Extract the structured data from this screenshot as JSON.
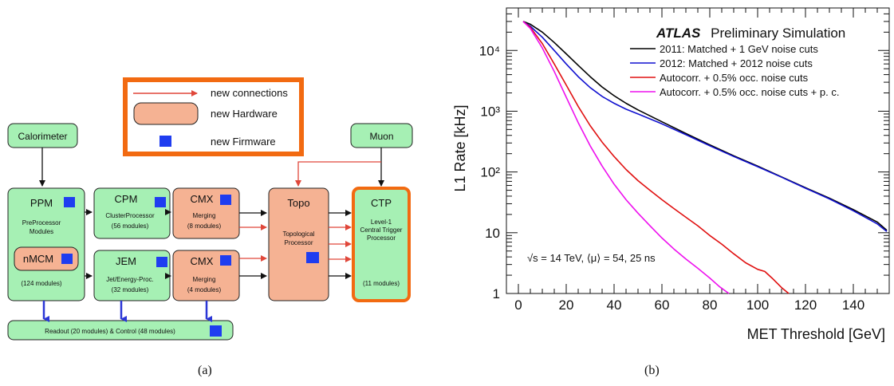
{
  "panel_a": {
    "caption": "(a)",
    "legend": {
      "new_connections": "new connections",
      "new_hardware": "new Hardware",
      "new_firmware": "new Firmware"
    },
    "calorimeter": "Calorimeter",
    "muon": "Muon",
    "ppm": {
      "title": "PPM",
      "sub1": "PreProcessor",
      "sub2": "Modules",
      "nmcm": "nMCM",
      "count": "(124 modules)"
    },
    "cpm": {
      "title": "CPM",
      "sub": "ClusterProcessor",
      "count": "(56 modules)"
    },
    "jem": {
      "title": "JEM",
      "sub": "Jet/Energy-Proc.",
      "count": "(32 modules)"
    },
    "cmx_top": {
      "title": "CMX",
      "sub": "Merging",
      "count": "(8 modules)"
    },
    "cmx_bottom": {
      "title": "CMX",
      "sub": "Merging",
      "count": "(4 modules)"
    },
    "topo": {
      "title": "Topo",
      "sub1": "Topological",
      "sub2": "Processor"
    },
    "ctp": {
      "title": "CTP",
      "sub1": "Level-1",
      "sub2": "Central Trigger",
      "sub3": "Processor",
      "count": "(11 modules)"
    },
    "readout": "Readout (20 modules) & Control  (48 modules)",
    "colors": {
      "green": "#a6f0b4",
      "salmon": "#f5b293",
      "orange": "#f26a11",
      "blue": "#1f3df0",
      "arrow_red": "#e0473a",
      "arrow_blue": "#2b36d6"
    }
  },
  "panel_b": {
    "caption": "(b)",
    "chart_data": {
      "type": "line",
      "xlabel": "MET Threshold [GeV]",
      "ylabel": "L1 Rate [kHz]",
      "xlim": [
        -5,
        155
      ],
      "ylim": [
        1,
        50000
      ],
      "yscale": "log",
      "x_ticks": [
        0,
        20,
        40,
        60,
        80,
        100,
        120,
        140
      ],
      "y_ticks": [
        {
          "value": 1,
          "label": "1"
        },
        {
          "value": 10,
          "label": "10"
        },
        {
          "value": 100,
          "label": "10²"
        },
        {
          "value": 1000,
          "label": "10³"
        },
        {
          "value": 10000,
          "label": "10⁴"
        }
      ],
      "legend_title_bold": "ATLAS",
      "legend_title_rest": "Preliminary Simulation",
      "legend_position": "top-right",
      "annotation": "√s  = 14 TeV, ⟨μ⟩ = 54, 25 ns",
      "series": [
        {
          "name": "2011: Matched + 1 GeV noise cuts",
          "color": "#000000",
          "x": [
            2,
            5,
            10,
            15,
            20,
            25,
            30,
            35,
            40,
            45,
            50,
            60,
            70,
            80,
            90,
            100,
            110,
            120,
            130,
            140,
            150,
            154
          ],
          "y": [
            30000,
            27000,
            20000,
            13500,
            8800,
            5700,
            3700,
            2500,
            1800,
            1350,
            1050,
            670,
            430,
            280,
            185,
            125,
            83,
            55,
            37,
            24,
            15,
            11
          ]
        },
        {
          "name": "2012: Matched + 2012 noise cuts",
          "color": "#1010d0",
          "x": [
            2,
            5,
            10,
            15,
            20,
            25,
            30,
            35,
            40,
            45,
            50,
            60,
            70,
            80,
            90,
            100,
            110,
            120,
            130,
            140,
            150,
            154
          ],
          "y": [
            30000,
            25000,
            16500,
            10000,
            6000,
            3700,
            2450,
            1750,
            1350,
            1080,
            900,
            620,
            410,
            270,
            180,
            122,
            82,
            54,
            36,
            23,
            14,
            10.5
          ]
        },
        {
          "name": "Autocorr. + 0.5% occ. noise cuts",
          "color": "#e01010",
          "x": [
            2,
            5,
            10,
            15,
            20,
            25,
            30,
            35,
            40,
            45,
            50,
            55,
            60,
            65,
            70,
            75,
            80,
            85,
            90,
            95,
            100,
            103,
            106,
            110,
            113
          ],
          "y": [
            30000,
            24000,
            13000,
            6000,
            2700,
            1200,
            580,
            310,
            180,
            110,
            72,
            50,
            35,
            25,
            18,
            13,
            9,
            6.5,
            4.5,
            3.2,
            2.5,
            2.3,
            1.8,
            1.25,
            1.0
          ]
        },
        {
          "name": "Autocorr. + 0.5% occ. noise cuts + p. c.",
          "color": "#ee10ee",
          "x": [
            2,
            5,
            10,
            15,
            20,
            25,
            30,
            35,
            40,
            45,
            50,
            55,
            60,
            65,
            70,
            75,
            80,
            84,
            88
          ],
          "y": [
            30000,
            23000,
            11000,
            4500,
            1700,
            650,
            270,
            125,
            63,
            35,
            21,
            13,
            8.2,
            5.4,
            3.7,
            2.6,
            1.8,
            1.3,
            1.0
          ]
        }
      ]
    }
  }
}
